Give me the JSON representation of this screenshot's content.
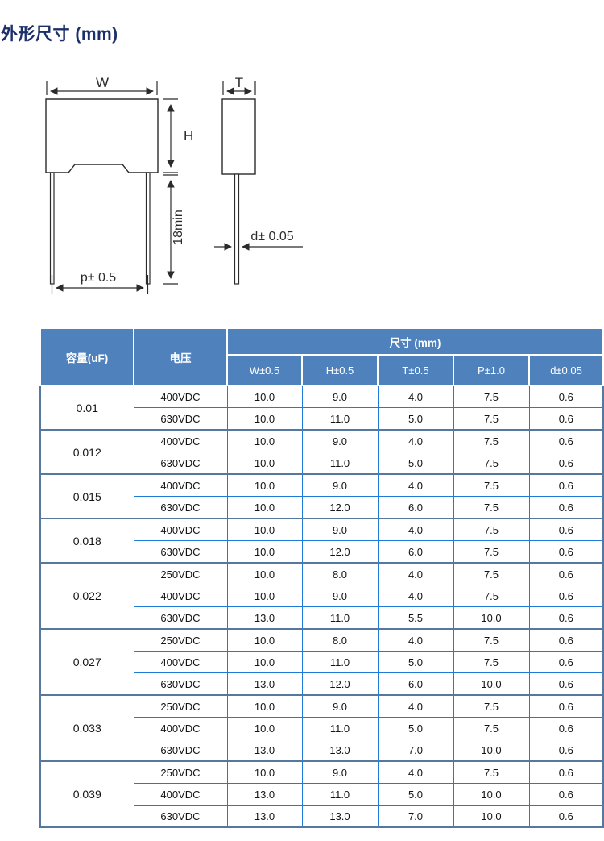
{
  "page": {
    "title": "外形尺寸  (mm)"
  },
  "diagram": {
    "labels": {
      "width": "W",
      "height": "H",
      "thickness": "T",
      "pitch": "p± 0.5",
      "lead_length_min": "18min",
      "lead_diameter": "d± 0.05"
    }
  },
  "table": {
    "header": {
      "capacity": "容量(uF)",
      "voltage": "电压",
      "dims_group": "尺寸 (mm)",
      "dims": [
        "W±0.5",
        "H±0.5",
        "T±0.5",
        "P±1.0",
        "d±0.05"
      ]
    },
    "groups": [
      {
        "capacity": "0.01",
        "rows": [
          [
            "400VDC",
            "10.0",
            "9.0",
            "4.0",
            "7.5",
            "0.6"
          ],
          [
            "630VDC",
            "10.0",
            "11.0",
            "5.0",
            "7.5",
            "0.6"
          ]
        ]
      },
      {
        "capacity": "0.012",
        "rows": [
          [
            "400VDC",
            "10.0",
            "9.0",
            "4.0",
            "7.5",
            "0.6"
          ],
          [
            "630VDC",
            "10.0",
            "11.0",
            "5.0",
            "7.5",
            "0.6"
          ]
        ]
      },
      {
        "capacity": "0.015",
        "rows": [
          [
            "400VDC",
            "10.0",
            "9.0",
            "4.0",
            "7.5",
            "0.6"
          ],
          [
            "630VDC",
            "10.0",
            "12.0",
            "6.0",
            "7.5",
            "0.6"
          ]
        ]
      },
      {
        "capacity": "0.018",
        "rows": [
          [
            "400VDC",
            "10.0",
            "9.0",
            "4.0",
            "7.5",
            "0.6"
          ],
          [
            "630VDC",
            "10.0",
            "12.0",
            "6.0",
            "7.5",
            "0.6"
          ]
        ]
      },
      {
        "capacity": "0.022",
        "rows": [
          [
            "250VDC",
            "10.0",
            "8.0",
            "4.0",
            "7.5",
            "0.6"
          ],
          [
            "400VDC",
            "10.0",
            "9.0",
            "4.0",
            "7.5",
            "0.6"
          ],
          [
            "630VDC",
            "13.0",
            "11.0",
            "5.5",
            "10.0",
            "0.6"
          ]
        ]
      },
      {
        "capacity": "0.027",
        "rows": [
          [
            "250VDC",
            "10.0",
            "8.0",
            "4.0",
            "7.5",
            "0.6"
          ],
          [
            "400VDC",
            "10.0",
            "11.0",
            "5.0",
            "7.5",
            "0.6"
          ],
          [
            "630VDC",
            "13.0",
            "12.0",
            "6.0",
            "10.0",
            "0.6"
          ]
        ]
      },
      {
        "capacity": "0.033",
        "rows": [
          [
            "250VDC",
            "10.0",
            "9.0",
            "4.0",
            "7.5",
            "0.6"
          ],
          [
            "400VDC",
            "10.0",
            "11.0",
            "5.0",
            "7.5",
            "0.6"
          ],
          [
            "630VDC",
            "13.0",
            "13.0",
            "7.0",
            "10.0",
            "0.6"
          ]
        ]
      },
      {
        "capacity": "0.039",
        "rows": [
          [
            "250VDC",
            "10.0",
            "9.0",
            "4.0",
            "7.5",
            "0.6"
          ],
          [
            "400VDC",
            "13.0",
            "11.0",
            "5.0",
            "10.0",
            "0.6"
          ],
          [
            "630VDC",
            "13.0",
            "13.0",
            "7.0",
            "10.0",
            "0.6"
          ]
        ]
      }
    ]
  },
  "colors": {
    "title": "#1b2f6b",
    "header_bg": "#4f81bd",
    "header_text": "#ffffff",
    "inner_border": "#1f7bd9",
    "group_border": "#54789e",
    "drawing_line": "#2b2b2b"
  }
}
